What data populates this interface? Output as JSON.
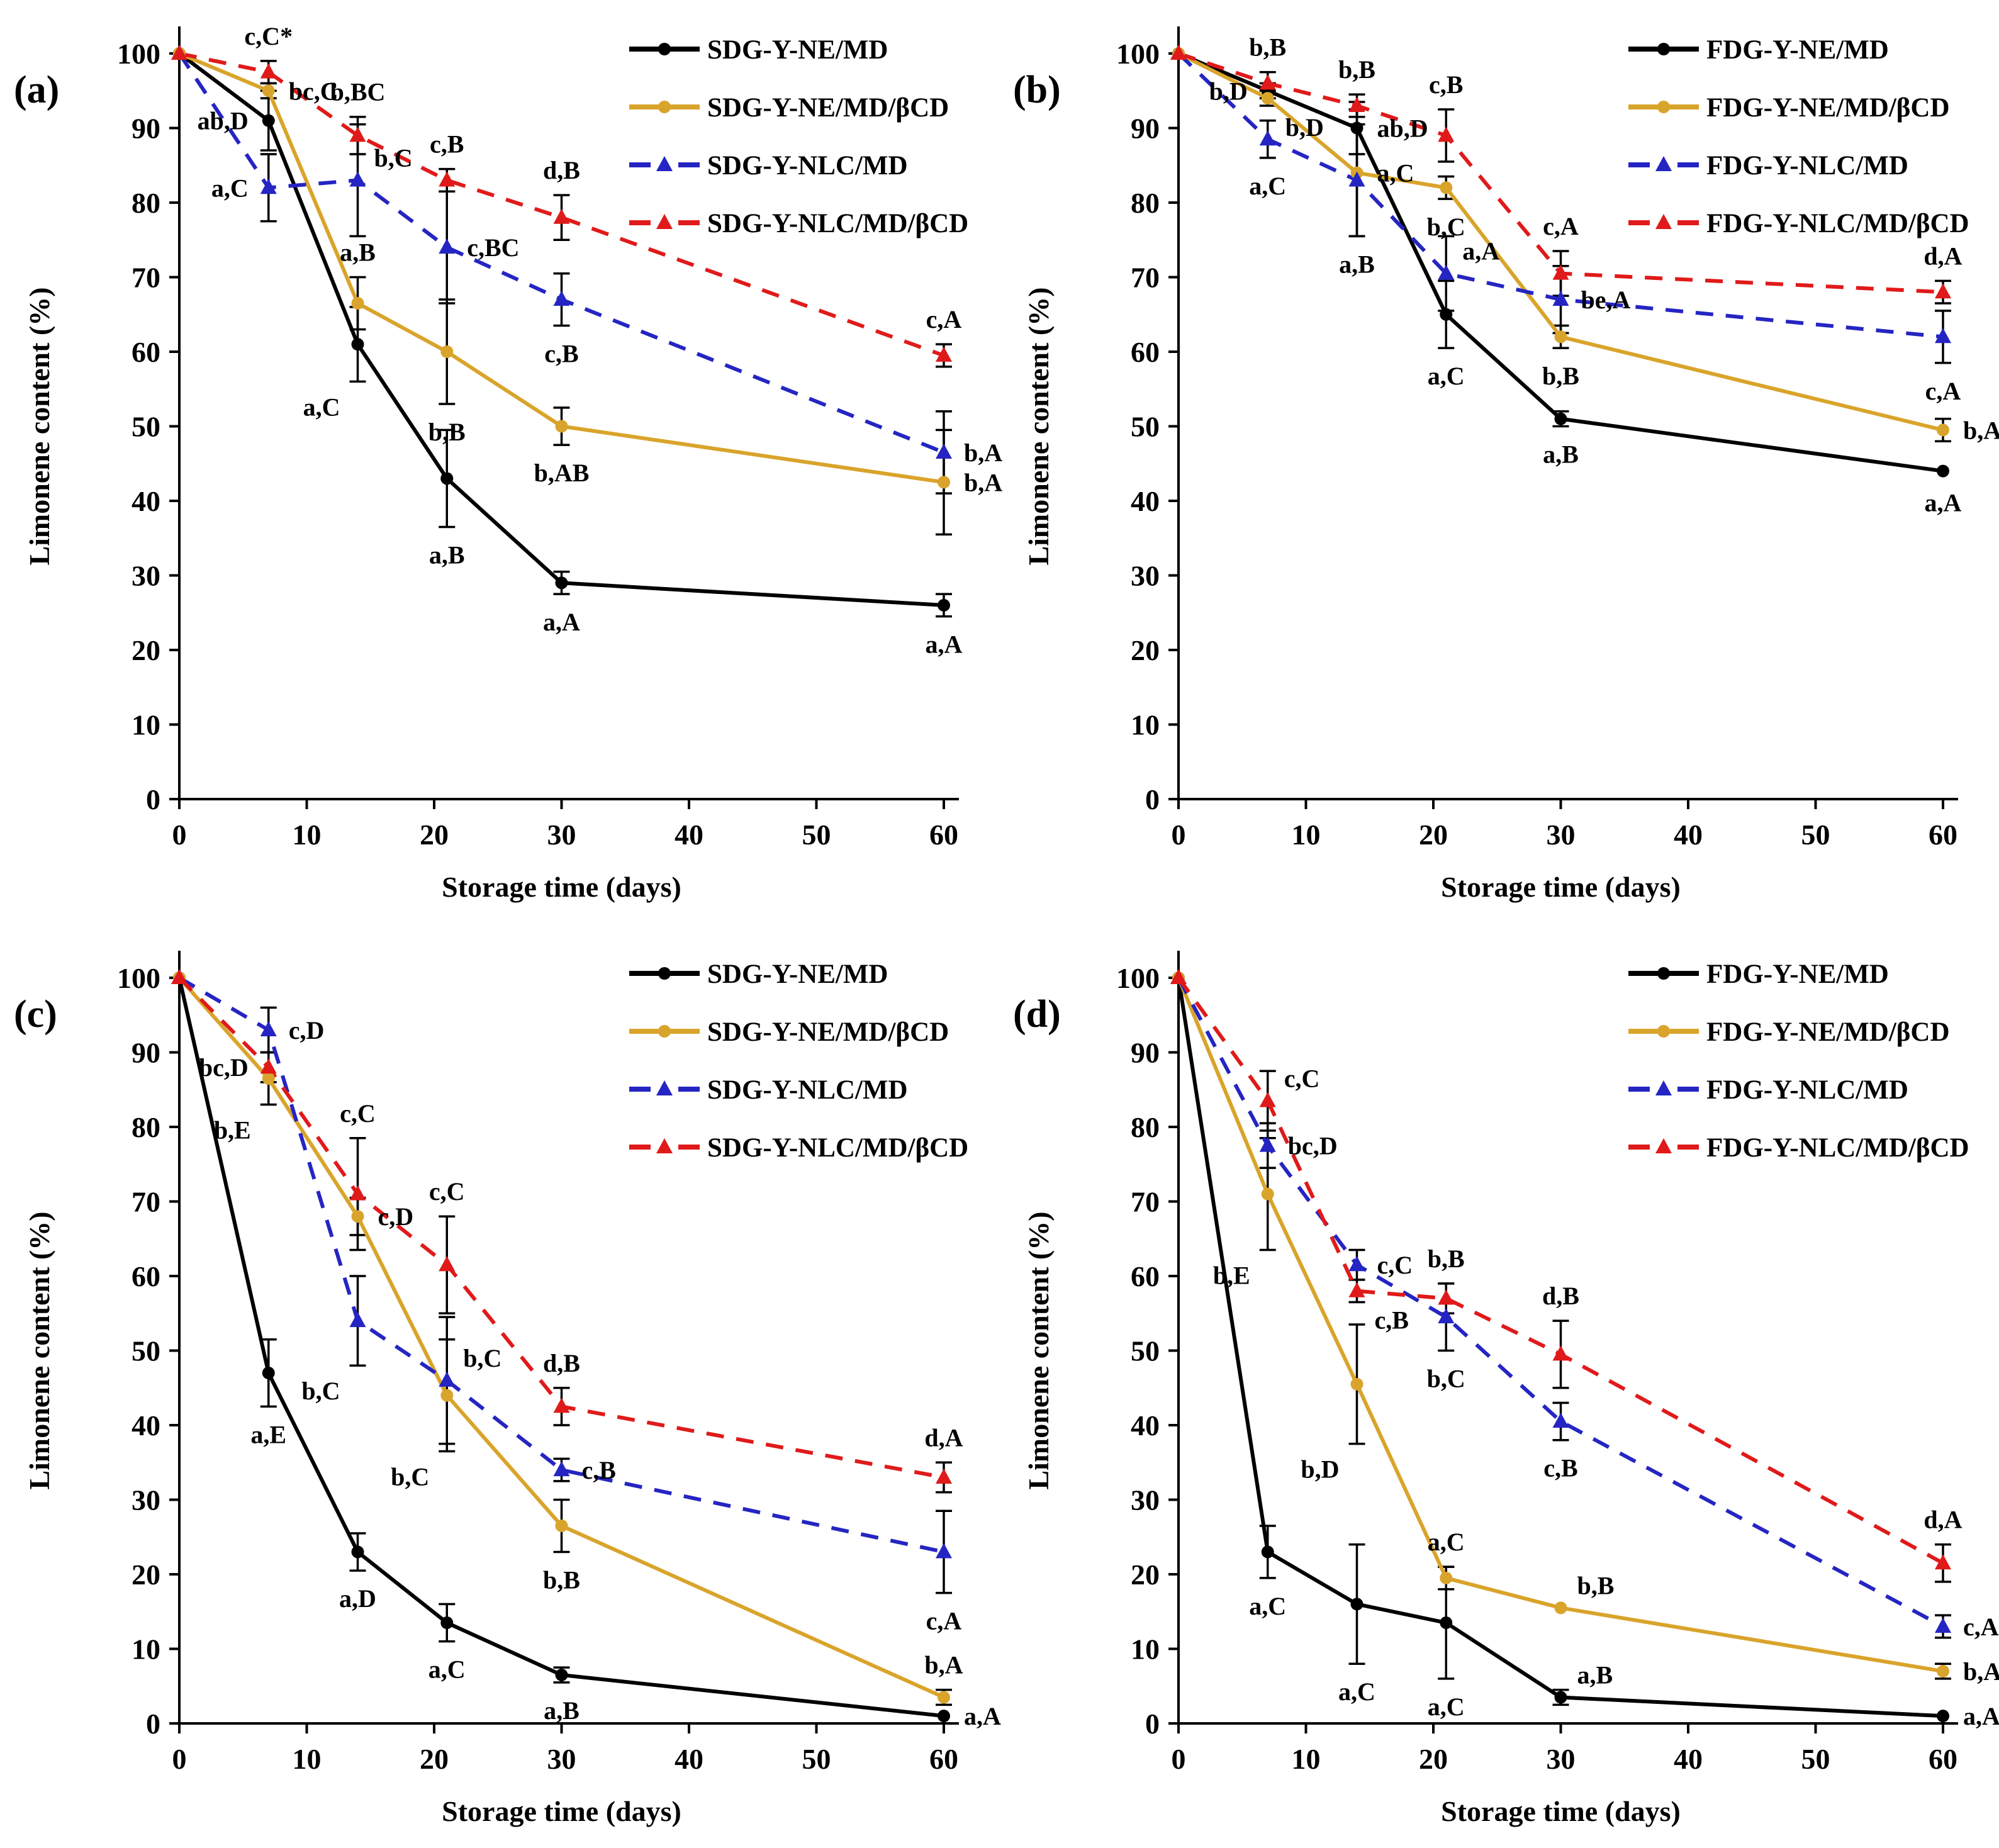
{
  "figure": {
    "background": "#FFFFFF",
    "xlabel": "Storage time (days)",
    "ylabel": "Limonene content (%)",
    "x_ticks": [
      0,
      10,
      20,
      30,
      40,
      50,
      60
    ],
    "y_ticks": [
      0,
      10,
      20,
      30,
      40,
      50,
      60,
      70,
      80,
      90,
      100
    ]
  },
  "palette": {
    "series_black": "#000000",
    "series_gold": "#D9A42B",
    "series_blue": "#2525C3",
    "series_red": "#E01A1A",
    "error_bar": "#000000",
    "text": "#000000"
  },
  "chart_data": [
    {
      "type": "line",
      "label": "(a)",
      "x": [
        0,
        7,
        14,
        21,
        30,
        60
      ],
      "xlabel": "Storage time (days)",
      "ylabel": "Limonene content (%)",
      "xlim": [
        0,
        60
      ],
      "ylim": [
        0,
        100
      ],
      "grid": false,
      "legend_position": "top-right",
      "series": [
        {
          "name": "SDG-Y-NE/MD",
          "color_key": "series_black",
          "line_style": "solid",
          "marker": "circle",
          "values": [
            100,
            91,
            61,
            43,
            29,
            26
          ],
          "errors": [
            0.5,
            4,
            5,
            6.5,
            1.5,
            1.5
          ],
          "point_labels": [
            "",
            "ab,D",
            "a,C",
            "a,B",
            "a,A",
            "a,A"
          ],
          "label_sides": [
            "",
            "left",
            "below-left",
            "below",
            "below",
            "below"
          ]
        },
        {
          "name": "SDG-Y-NE/MD/βCD",
          "color_key": "series_gold",
          "line_style": "solid",
          "marker": "circle",
          "values": [
            100,
            95,
            66.5,
            60,
            50,
            42.5
          ],
          "errors": [
            0.5,
            1,
            3.5,
            7,
            2.5,
            7
          ],
          "point_labels": [
            "",
            "bc,C",
            "a,B",
            "b,B",
            "b,AB",
            "b,A"
          ],
          "label_sides": [
            "",
            "right",
            "above",
            "below",
            "below",
            "right"
          ]
        },
        {
          "name": "SDG-Y-NLC/MD",
          "color_key": "series_blue",
          "line_style": "dashed",
          "marker": "triangle",
          "values": [
            100,
            82,
            83,
            74,
            67,
            46.5
          ],
          "errors": [
            0.5,
            4.5,
            7.5,
            7.5,
            3.5,
            5.5
          ],
          "point_labels": [
            "",
            "a,C",
            "b,C",
            "c,BC",
            "c,B",
            "b,A"
          ],
          "label_sides": [
            "",
            "left",
            "above-right",
            "right",
            "below",
            "right"
          ]
        },
        {
          "name": "SDG-Y-NLC/MD/βCD",
          "color_key": "series_red",
          "line_style": "dashed",
          "marker": "triangle",
          "values": [
            100,
            97.5,
            89,
            83,
            78,
            59.5
          ],
          "errors": [
            0.5,
            1.5,
            2.5,
            1.5,
            3,
            1.5
          ],
          "point_labels": [
            "",
            "c,C*",
            "b,BC",
            "c,B",
            "d,B",
            "c,A"
          ],
          "label_sides": [
            "",
            "above",
            "above",
            "above",
            "above",
            "above"
          ]
        }
      ]
    },
    {
      "type": "line",
      "label": "(b)",
      "x": [
        0,
        7,
        14,
        21,
        30,
        60
      ],
      "xlabel": "Storage time (days)",
      "ylabel": "Limonene content (%)",
      "xlim": [
        0,
        60
      ],
      "ylim": [
        0,
        100
      ],
      "grid": false,
      "legend_position": "top-right",
      "series": [
        {
          "name": "FDG-Y-NE/MD",
          "color_key": "series_black",
          "line_style": "solid",
          "marker": "circle",
          "values": [
            100,
            95,
            90,
            65,
            51,
            44
          ],
          "errors": [
            0.5,
            1,
            3.5,
            4.5,
            1,
            0.5
          ],
          "point_labels": [
            "",
            "b,D",
            "ab,D",
            "a,C",
            "a,B",
            "a,A"
          ],
          "label_sides": [
            "",
            "left",
            "right",
            "below",
            "below",
            "below"
          ]
        },
        {
          "name": "FDG-Y-NE/MD/βCD",
          "color_key": "series_gold",
          "line_style": "solid",
          "marker": "circle",
          "values": [
            100,
            94,
            84,
            82,
            62,
            49.5
          ],
          "errors": [
            0.5,
            1,
            8.5,
            1.5,
            1.5,
            1.5
          ],
          "point_labels": [
            "",
            "b,D",
            "a,C",
            "b,C",
            "b,B",
            "b,A"
          ],
          "label_sides": [
            "",
            "below-right",
            "right",
            "below",
            "below",
            "right"
          ]
        },
        {
          "name": "FDG-Y-NLC/MD",
          "color_key": "series_blue",
          "line_style": "dashed",
          "marker": "triangle",
          "values": [
            100,
            88.5,
            83,
            70.5,
            67,
            62
          ],
          "errors": [
            0.5,
            2.5,
            7.5,
            5,
            4.5,
            3.5
          ],
          "point_labels": [
            "",
            "a,C",
            "a,B",
            "a,A",
            "be,A",
            "c,A"
          ],
          "label_sides": [
            "",
            "below",
            "below",
            "above-right",
            "right",
            "below"
          ]
        },
        {
          "name": "FDG-Y-NLC/MD/βCD",
          "color_key": "series_red",
          "line_style": "dashed",
          "marker": "triangle",
          "values": [
            100,
            96,
            93,
            89,
            70.5,
            68
          ],
          "errors": [
            0.5,
            1.5,
            1.5,
            3.5,
            3,
            1.5
          ],
          "point_labels": [
            "",
            "b,B",
            "b,B",
            "c,B",
            "c,A",
            "d,A"
          ],
          "label_sides": [
            "",
            "above",
            "above",
            "above",
            "above",
            "above"
          ]
        }
      ]
    },
    {
      "type": "line",
      "label": "(c)",
      "x": [
        0,
        7,
        14,
        21,
        30,
        60
      ],
      "xlabel": "Storage time (days)",
      "ylabel": "Limonene content (%)",
      "xlim": [
        0,
        60
      ],
      "ylim": [
        0,
        100
      ],
      "grid": false,
      "legend_position": "top-right",
      "series": [
        {
          "name": "SDG-Y-NE/MD",
          "color_key": "series_black",
          "line_style": "solid",
          "marker": "circle",
          "values": [
            100,
            47,
            23,
            13.5,
            6.5,
            1
          ],
          "errors": [
            0.5,
            4.5,
            2.5,
            2.5,
            1,
            0.5
          ],
          "point_labels": [
            "",
            "a,E",
            "a,D",
            "a,C",
            "a,B",
            "a,A"
          ],
          "label_sides": [
            "",
            "below",
            "below",
            "below",
            "below",
            "right"
          ]
        },
        {
          "name": "SDG-Y-NE/MD/βCD",
          "color_key": "series_gold",
          "line_style": "solid",
          "marker": "circle",
          "values": [
            100,
            86.5,
            68,
            44,
            26.5,
            3.5
          ],
          "errors": [
            0.5,
            3.5,
            2.5,
            7.5,
            3.5,
            1
          ],
          "point_labels": [
            "",
            "b,E",
            "c,D",
            "b,C",
            "b,B",
            "b,A"
          ],
          "label_sides": [
            "",
            "below-left",
            "right",
            "below-left",
            "below",
            "above"
          ]
        },
        {
          "name": "SDG-Y-NLC/MD",
          "color_key": "series_blue",
          "line_style": "dashed",
          "marker": "triangle",
          "values": [
            100,
            93,
            54,
            46,
            34,
            23
          ],
          "errors": [
            0.5,
            3,
            6,
            8.5,
            1.5,
            5.5
          ],
          "point_labels": [
            "",
            "c,D",
            "b,C",
            "b,C",
            "c,B",
            "c,A"
          ],
          "label_sides": [
            "",
            "right",
            "below-left",
            "above-right",
            "right",
            "below"
          ]
        },
        {
          "name": "SDG-Y-NLC/MD/βCD",
          "color_key": "series_red",
          "line_style": "dashed",
          "marker": "triangle",
          "values": [
            100,
            88,
            71,
            61.5,
            42.5,
            33
          ],
          "errors": [
            0.5,
            2,
            7.5,
            6.5,
            2.5,
            2
          ],
          "point_labels": [
            "",
            "bc,D",
            "c,C",
            "c,C",
            "d,B",
            "d,A"
          ],
          "label_sides": [
            "",
            "left",
            "above",
            "above",
            "above",
            "above"
          ]
        }
      ]
    },
    {
      "type": "line",
      "label": "(d)",
      "x": [
        0,
        7,
        14,
        21,
        30,
        60
      ],
      "xlabel": "Storage time (days)",
      "ylabel": "Limonene content (%)",
      "xlim": [
        0,
        60
      ],
      "ylim": [
        0,
        100
      ],
      "grid": false,
      "legend_position": "top-right",
      "series": [
        {
          "name": "FDG-Y-NE/MD",
          "color_key": "series_black",
          "line_style": "solid",
          "marker": "circle",
          "values": [
            100,
            23,
            16,
            13.5,
            3.5,
            1
          ],
          "errors": [
            0.5,
            3.5,
            8,
            7.5,
            1,
            0.5
          ],
          "point_labels": [
            "",
            "a,C",
            "a,C",
            "a,C",
            "a,B",
            "a,A"
          ],
          "label_sides": [
            "",
            "below",
            "below",
            "below",
            "above-right",
            "right"
          ]
        },
        {
          "name": "FDG-Y-NE/MD/βCD",
          "color_key": "series_gold",
          "line_style": "solid",
          "marker": "circle",
          "values": [
            100,
            71,
            45.5,
            19.5,
            15.5,
            7
          ],
          "errors": [
            0.5,
            7.5,
            8,
            1.5,
            0.5,
            1
          ],
          "point_labels": [
            "",
            "b,E",
            "b,D",
            "a,C",
            "b,B",
            "b,A"
          ],
          "label_sides": [
            "",
            "below-left",
            "below-left",
            "above",
            "above-right",
            "right"
          ]
        },
        {
          "name": "FDG-Y-NLC/MD",
          "color_key": "series_blue",
          "line_style": "dashed",
          "marker": "triangle",
          "values": [
            100,
            77.5,
            61.5,
            54.5,
            40.5,
            13
          ],
          "errors": [
            0.5,
            3,
            2,
            4.5,
            2.5,
            1.5
          ],
          "point_labels": [
            "",
            "bc,D",
            "c,C",
            "b,C",
            "c,B",
            "c,A"
          ],
          "label_sides": [
            "",
            "right",
            "right",
            "below",
            "below",
            "right"
          ]
        },
        {
          "name": "FDG-Y-NLC/MD/βCD",
          "color_key": "series_red",
          "line_style": "dashed",
          "marker": "triangle",
          "values": [
            100,
            83.5,
            58,
            57,
            49.5,
            21.5
          ],
          "errors": [
            0.5,
            4,
            1.5,
            2,
            4.5,
            2.5
          ],
          "point_labels": [
            "",
            "c,C",
            "c,B",
            "b,B",
            "d,B",
            "d,A"
          ],
          "label_sides": [
            "",
            "above-right",
            "below-right",
            "above",
            "above",
            "above"
          ]
        }
      ]
    }
  ]
}
